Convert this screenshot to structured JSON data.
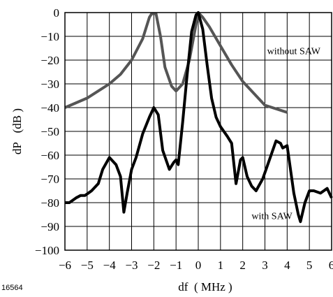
{
  "figure_id": "16564",
  "chart_data": {
    "type": "line",
    "xlabel": "df  ( MHz )",
    "ylabel": "dP   (dB )",
    "xlim": [
      -6,
      6
    ],
    "ylim": [
      -100,
      0
    ],
    "xticks": [
      -6,
      -5,
      -4,
      -3,
      -2,
      -1,
      0,
      1,
      2,
      3,
      4,
      5,
      6
    ],
    "yticks": [
      0,
      -10,
      -20,
      -30,
      -40,
      -50,
      -60,
      -70,
      -80,
      -90,
      -100
    ],
    "grid": true,
    "annotations": [
      {
        "text": "without SAW",
        "x": 3.1,
        "y": -16
      },
      {
        "text": "with SAW",
        "x": 2.4,
        "y": -85.5
      }
    ],
    "series": [
      {
        "color": "#555555",
        "x": [
          -6,
          -5,
          -4,
          -3.5,
          -3,
          -2.5,
          -2.2,
          -2.1,
          -1.9,
          -1.7,
          -1.5,
          -1.2,
          -1,
          -0.7,
          -0.4,
          -0.2,
          0,
          0.2,
          0.5,
          1,
          1.5,
          2,
          3,
          4
        ],
        "y": [
          -40,
          -36,
          -30,
          -26,
          -20,
          -11,
          -2,
          -0.5,
          -0.5,
          -10,
          -23,
          -31,
          -33,
          -30,
          -20,
          -10,
          0,
          -2,
          -6,
          -14,
          -22,
          -29,
          -39,
          -42
        ]
      },
      {
        "color": "#000000",
        "x": [
          -6,
          -5.8,
          -5.5,
          -5.3,
          -5.1,
          -4.8,
          -4.5,
          -4.3,
          -4,
          -3.7,
          -3.5,
          -3.35,
          -3.2,
          -3,
          -2.8,
          -2.5,
          -2.2,
          -2,
          -1.8,
          -1.6,
          -1.3,
          -1.1,
          -1,
          -0.9,
          -0.7,
          -0.5,
          -0.3,
          -0.1,
          0,
          0.2,
          0.4,
          0.6,
          0.8,
          1,
          1.3,
          1.5,
          1.7,
          1.9,
          2,
          2.2,
          2.4,
          2.6,
          2.9,
          3.2,
          3.5,
          3.7,
          3.8,
          4,
          4.3,
          4.5,
          4.6,
          4.8,
          5,
          5.2,
          5.5,
          5.8,
          6
        ],
        "y": [
          -80,
          -80,
          -78,
          -77,
          -77,
          -75,
          -72,
          -66,
          -61,
          -64,
          -69,
          -84,
          -76,
          -66,
          -61,
          -51,
          -44,
          -40,
          -43,
          -58,
          -66,
          -63,
          -62,
          -64,
          -46,
          -26,
          -8,
          -1,
          0,
          -7,
          -22,
          -36,
          -44,
          -48,
          -52,
          -55,
          -72,
          -62,
          -61,
          -69,
          -73,
          -75,
          -70,
          -62,
          -54,
          -55,
          -57,
          -56,
          -76,
          -85,
          -88,
          -80,
          -75,
          -75,
          -76,
          -74,
          -78
        ]
      }
    ]
  }
}
